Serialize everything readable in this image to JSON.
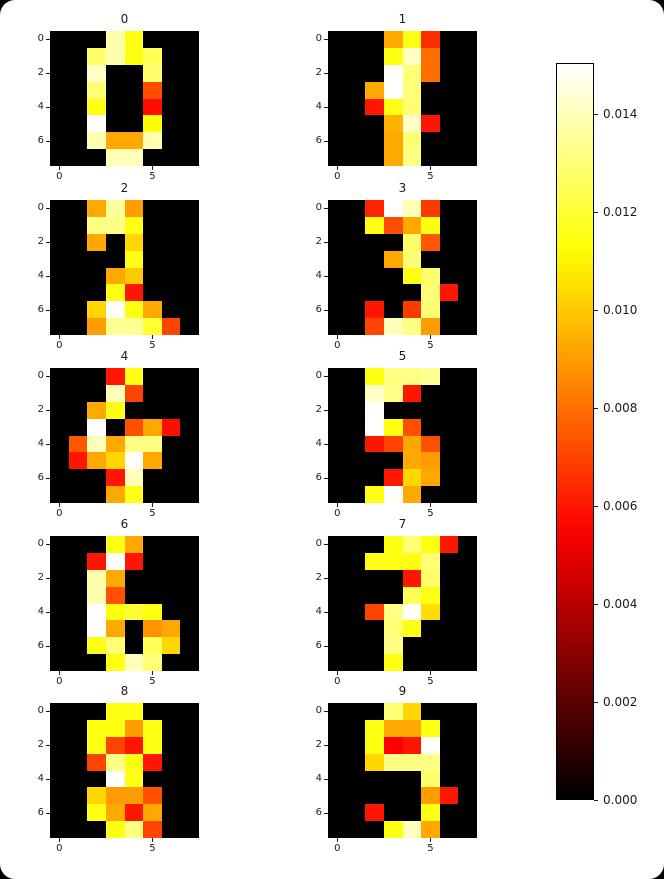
{
  "figure": {
    "background": "#ffffff",
    "outside_background": "#000000"
  },
  "chart_data": {
    "type": "heatmap",
    "colormap": "hot",
    "vmin": 0.0,
    "vmax": 0.01505,
    "grid_size": 8,
    "x_tick_labels": [
      "0",
      "5"
    ],
    "x_tick_positions": [
      0,
      5
    ],
    "y_tick_labels": [
      "0",
      "2",
      "4",
      "6"
    ],
    "y_tick_positions": [
      0,
      2,
      4,
      6
    ],
    "colorbar_tick_labels": [
      "0.014",
      "0.012",
      "0.010",
      "0.008",
      "0.006",
      "0.004",
      "0.002",
      "0.000"
    ],
    "colorbar_tick_values": [
      0.014,
      0.012,
      0.01,
      0.008,
      0.006,
      0.004,
      0.002,
      0.0
    ],
    "subplots": [
      {
        "title": "0",
        "grid": [
          [
            0,
            0,
            0,
            0.0138,
            0.0115,
            0,
            0,
            0
          ],
          [
            0,
            0,
            0.0128,
            0.0138,
            0.0115,
            0.0125,
            0,
            0
          ],
          [
            0,
            0,
            0.0142,
            0,
            0,
            0.0128,
            0,
            0
          ],
          [
            0,
            0,
            0.013,
            0,
            0,
            0.0072,
            0,
            0
          ],
          [
            0,
            0,
            0.0115,
            0,
            0,
            0.0058,
            0,
            0
          ],
          [
            0,
            0,
            0.015,
            0,
            0,
            0.0113,
            0,
            0
          ],
          [
            0,
            0,
            0.0139,
            0.0093,
            0.0093,
            0.0139,
            0,
            0
          ],
          [
            0,
            0,
            0,
            0.014,
            0.014,
            0,
            0,
            0
          ]
        ]
      },
      {
        "title": "1",
        "grid": [
          [
            0,
            0,
            0,
            0.0093,
            0.0115,
            0.0065,
            0,
            0
          ],
          [
            0,
            0,
            0,
            0.0115,
            0.0142,
            0.008,
            0,
            0
          ],
          [
            0,
            0,
            0,
            0.015,
            0.013,
            0.008,
            0,
            0
          ],
          [
            0,
            0,
            0.0093,
            0.015,
            0.013,
            0,
            0,
            0
          ],
          [
            0,
            0,
            0.006,
            0.0115,
            0.013,
            0,
            0,
            0
          ],
          [
            0,
            0,
            0,
            0.0095,
            0.0142,
            0.006,
            0,
            0
          ],
          [
            0,
            0,
            0,
            0.0093,
            0.013,
            0,
            0,
            0
          ],
          [
            0,
            0,
            0,
            0.0093,
            0.0132,
            0,
            0,
            0
          ]
        ]
      },
      {
        "title": "2",
        "grid": [
          [
            0,
            0,
            0.0093,
            0.0135,
            0.009,
            0,
            0,
            0
          ],
          [
            0,
            0,
            0.0132,
            0.0132,
            0.0115,
            0,
            0,
            0
          ],
          [
            0,
            0,
            0.0093,
            0,
            0.0103,
            0,
            0,
            0
          ],
          [
            0,
            0,
            0,
            0,
            0.0115,
            0,
            0,
            0
          ],
          [
            0,
            0,
            0,
            0.0093,
            0.01,
            0,
            0,
            0
          ],
          [
            0,
            0,
            0,
            0.0115,
            0.006,
            0,
            0,
            0
          ],
          [
            0,
            0,
            0.0103,
            0.015,
            0.0115,
            0.0093,
            0,
            0
          ],
          [
            0,
            0,
            0.009,
            0.0134,
            0.0134,
            0.012,
            0.007,
            0
          ]
        ]
      },
      {
        "title": "3",
        "grid": [
          [
            0,
            0,
            0.0063,
            0.015,
            0.014,
            0.0068,
            0,
            0
          ],
          [
            0,
            0,
            0.0115,
            0.0072,
            0.0093,
            0.0115,
            0,
            0
          ],
          [
            0,
            0,
            0,
            0,
            0.0128,
            0.0075,
            0,
            0
          ],
          [
            0,
            0,
            0,
            0.0093,
            0.013,
            0,
            0,
            0
          ],
          [
            0,
            0,
            0,
            0,
            0.0115,
            0.0128,
            0,
            0
          ],
          [
            0,
            0,
            0,
            0,
            0,
            0.013,
            0.006,
            0
          ],
          [
            0,
            0,
            0.006,
            0,
            0.0068,
            0.013,
            0,
            0
          ],
          [
            0,
            0,
            0.007,
            0.014,
            0.0132,
            0.009,
            0,
            0
          ]
        ]
      },
      {
        "title": "4",
        "grid": [
          [
            0,
            0,
            0,
            0.006,
            0.0115,
            0,
            0,
            0
          ],
          [
            0,
            0,
            0,
            0.014,
            0.007,
            0,
            0,
            0
          ],
          [
            0,
            0,
            0.0093,
            0.0115,
            0,
            0,
            0,
            0
          ],
          [
            0,
            0,
            0.015,
            0,
            0.0073,
            0.0093,
            0.0058,
            0
          ],
          [
            0,
            0.0075,
            0.014,
            0.0093,
            0.0132,
            0.0132,
            0,
            0
          ],
          [
            0,
            0.006,
            0.0093,
            0.0103,
            0.015,
            0.0093,
            0,
            0
          ],
          [
            0,
            0,
            0,
            0.006,
            0.014,
            0,
            0,
            0
          ],
          [
            0,
            0,
            0,
            0.0093,
            0.0115,
            0,
            0,
            0
          ]
        ]
      },
      {
        "title": "5",
        "grid": [
          [
            0,
            0,
            0.0115,
            0.0132,
            0.0132,
            0.0134,
            0,
            0
          ],
          [
            0,
            0,
            0.0142,
            0.0132,
            0.006,
            0,
            0,
            0
          ],
          [
            0,
            0,
            0.015,
            0,
            0,
            0,
            0,
            0
          ],
          [
            0,
            0,
            0.015,
            0.0115,
            0.0073,
            0,
            0,
            0
          ],
          [
            0,
            0,
            0.006,
            0.007,
            0.0093,
            0.0073,
            0,
            0
          ],
          [
            0,
            0,
            0,
            0,
            0.0093,
            0.009,
            0,
            0
          ],
          [
            0,
            0,
            0,
            0.006,
            0.0103,
            0.0093,
            0,
            0
          ],
          [
            0,
            0,
            0.0115,
            0.015,
            0.0093,
            0,
            0,
            0
          ]
        ]
      },
      {
        "title": "6",
        "grid": [
          [
            0,
            0,
            0,
            0.0115,
            0.0093,
            0,
            0,
            0
          ],
          [
            0,
            0,
            0.006,
            0.015,
            0.006,
            0,
            0,
            0
          ],
          [
            0,
            0,
            0.0138,
            0.0093,
            0,
            0,
            0,
            0
          ],
          [
            0,
            0,
            0.0138,
            0.0073,
            0,
            0,
            0,
            0
          ],
          [
            0,
            0,
            0.015,
            0.0115,
            0.012,
            0.0115,
            0,
            0
          ],
          [
            0,
            0,
            0.015,
            0.0093,
            0,
            0.0088,
            0.0093,
            0
          ],
          [
            0,
            0,
            0.0115,
            0.013,
            0,
            0.0125,
            0.0103,
            0
          ],
          [
            0,
            0,
            0,
            0.0115,
            0.014,
            0.013,
            0,
            0
          ]
        ]
      },
      {
        "title": "7",
        "grid": [
          [
            0,
            0,
            0,
            0.0115,
            0.013,
            0.0115,
            0.006,
            0
          ],
          [
            0,
            0,
            0.0115,
            0.0115,
            0.0115,
            0.013,
            0,
            0
          ],
          [
            0,
            0,
            0,
            0,
            0.006,
            0.0128,
            0,
            0
          ],
          [
            0,
            0,
            0,
            0,
            0.0125,
            0.0115,
            0,
            0
          ],
          [
            0,
            0,
            0.007,
            0.0132,
            0.015,
            0.0105,
            0,
            0
          ],
          [
            0,
            0,
            0,
            0.013,
            0.0115,
            0,
            0,
            0
          ],
          [
            0,
            0,
            0,
            0.0132,
            0,
            0,
            0,
            0
          ],
          [
            0,
            0,
            0,
            0.0115,
            0,
            0,
            0,
            0
          ]
        ]
      },
      {
        "title": "8",
        "grid": [
          [
            0,
            0,
            0,
            0.0115,
            0.0115,
            0,
            0,
            0
          ],
          [
            0,
            0,
            0.0115,
            0.0115,
            0.009,
            0.0115,
            0,
            0
          ],
          [
            0,
            0,
            0.0115,
            0.007,
            0.006,
            0.0115,
            0,
            0
          ],
          [
            0,
            0,
            0.007,
            0.0132,
            0.0115,
            0.006,
            0,
            0
          ],
          [
            0,
            0,
            0,
            0.015,
            0.0115,
            0,
            0,
            0
          ],
          [
            0,
            0,
            0.0103,
            0.009,
            0.009,
            0.0073,
            0,
            0
          ],
          [
            0,
            0,
            0.0115,
            0.0093,
            0.006,
            0.0093,
            0,
            0
          ],
          [
            0,
            0,
            0,
            0.0115,
            0.0132,
            0.007,
            0,
            0
          ]
        ]
      },
      {
        "title": "9",
        "grid": [
          [
            0,
            0,
            0,
            0.013,
            0.0103,
            0,
            0,
            0
          ],
          [
            0,
            0,
            0.0115,
            0.0093,
            0.0093,
            0.0115,
            0,
            0
          ],
          [
            0,
            0,
            0.0115,
            0.0055,
            0.006,
            0.015,
            0,
            0
          ],
          [
            0,
            0,
            0.0103,
            0.0132,
            0.0132,
            0.0132,
            0,
            0
          ],
          [
            0,
            0,
            0,
            0,
            0,
            0.0128,
            0,
            0
          ],
          [
            0,
            0,
            0,
            0,
            0,
            0.009,
            0.006,
            0
          ],
          [
            0,
            0,
            0.006,
            0,
            0,
            0.0115,
            0,
            0
          ],
          [
            0,
            0,
            0,
            0.0115,
            0.014,
            0.0093,
            0,
            0
          ]
        ]
      }
    ]
  }
}
